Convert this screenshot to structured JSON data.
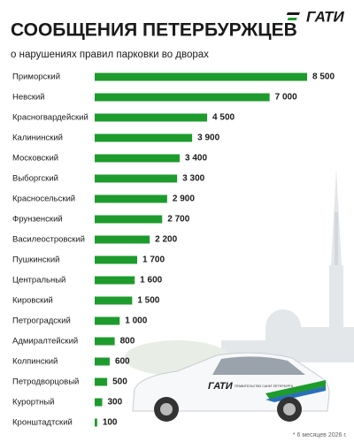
{
  "header": {
    "title": "СООБЩЕНИЯ ПЕТЕРБУРЖЦЕВ",
    "subtitle": "о нарушениях правил парковки во дворах",
    "logo": "ГАТИ"
  },
  "chart_data": {
    "type": "bar",
    "orientation": "horizontal",
    "categories": [
      "Приморский",
      "Невский",
      "Красногвардейский",
      "Калининский",
      "Московский",
      "Выборгский",
      "Красносельский",
      "Фрунзенский",
      "Василеостровский",
      "Пушкинский",
      "Центральный",
      "Кировский",
      "Петроградский",
      "Адмиралтейский",
      "Колпинский",
      "Петродворцовый",
      "Курортный",
      "Кронштадтский"
    ],
    "values": [
      8500,
      7000,
      4500,
      3900,
      3400,
      3300,
      2900,
      2700,
      2200,
      1700,
      1600,
      1500,
      1000,
      800,
      600,
      500,
      300,
      100
    ],
    "value_labels": [
      "8 500",
      "7 000",
      "4 500",
      "3 900",
      "3 400",
      "3 300",
      "2 900",
      "2 700",
      "2 200",
      "1 700",
      "1 600",
      "1 500",
      "1 000",
      "800",
      "600",
      "500",
      "300",
      "100"
    ],
    "color": "#1e9b2d"
  },
  "car": {
    "logo": "ГАТИ",
    "caption": "ПРАВИТЕЛЬСТВО САНКТ-ПЕТЕРБУРГА"
  },
  "footnote": "* 6 месяцев 2026 г."
}
